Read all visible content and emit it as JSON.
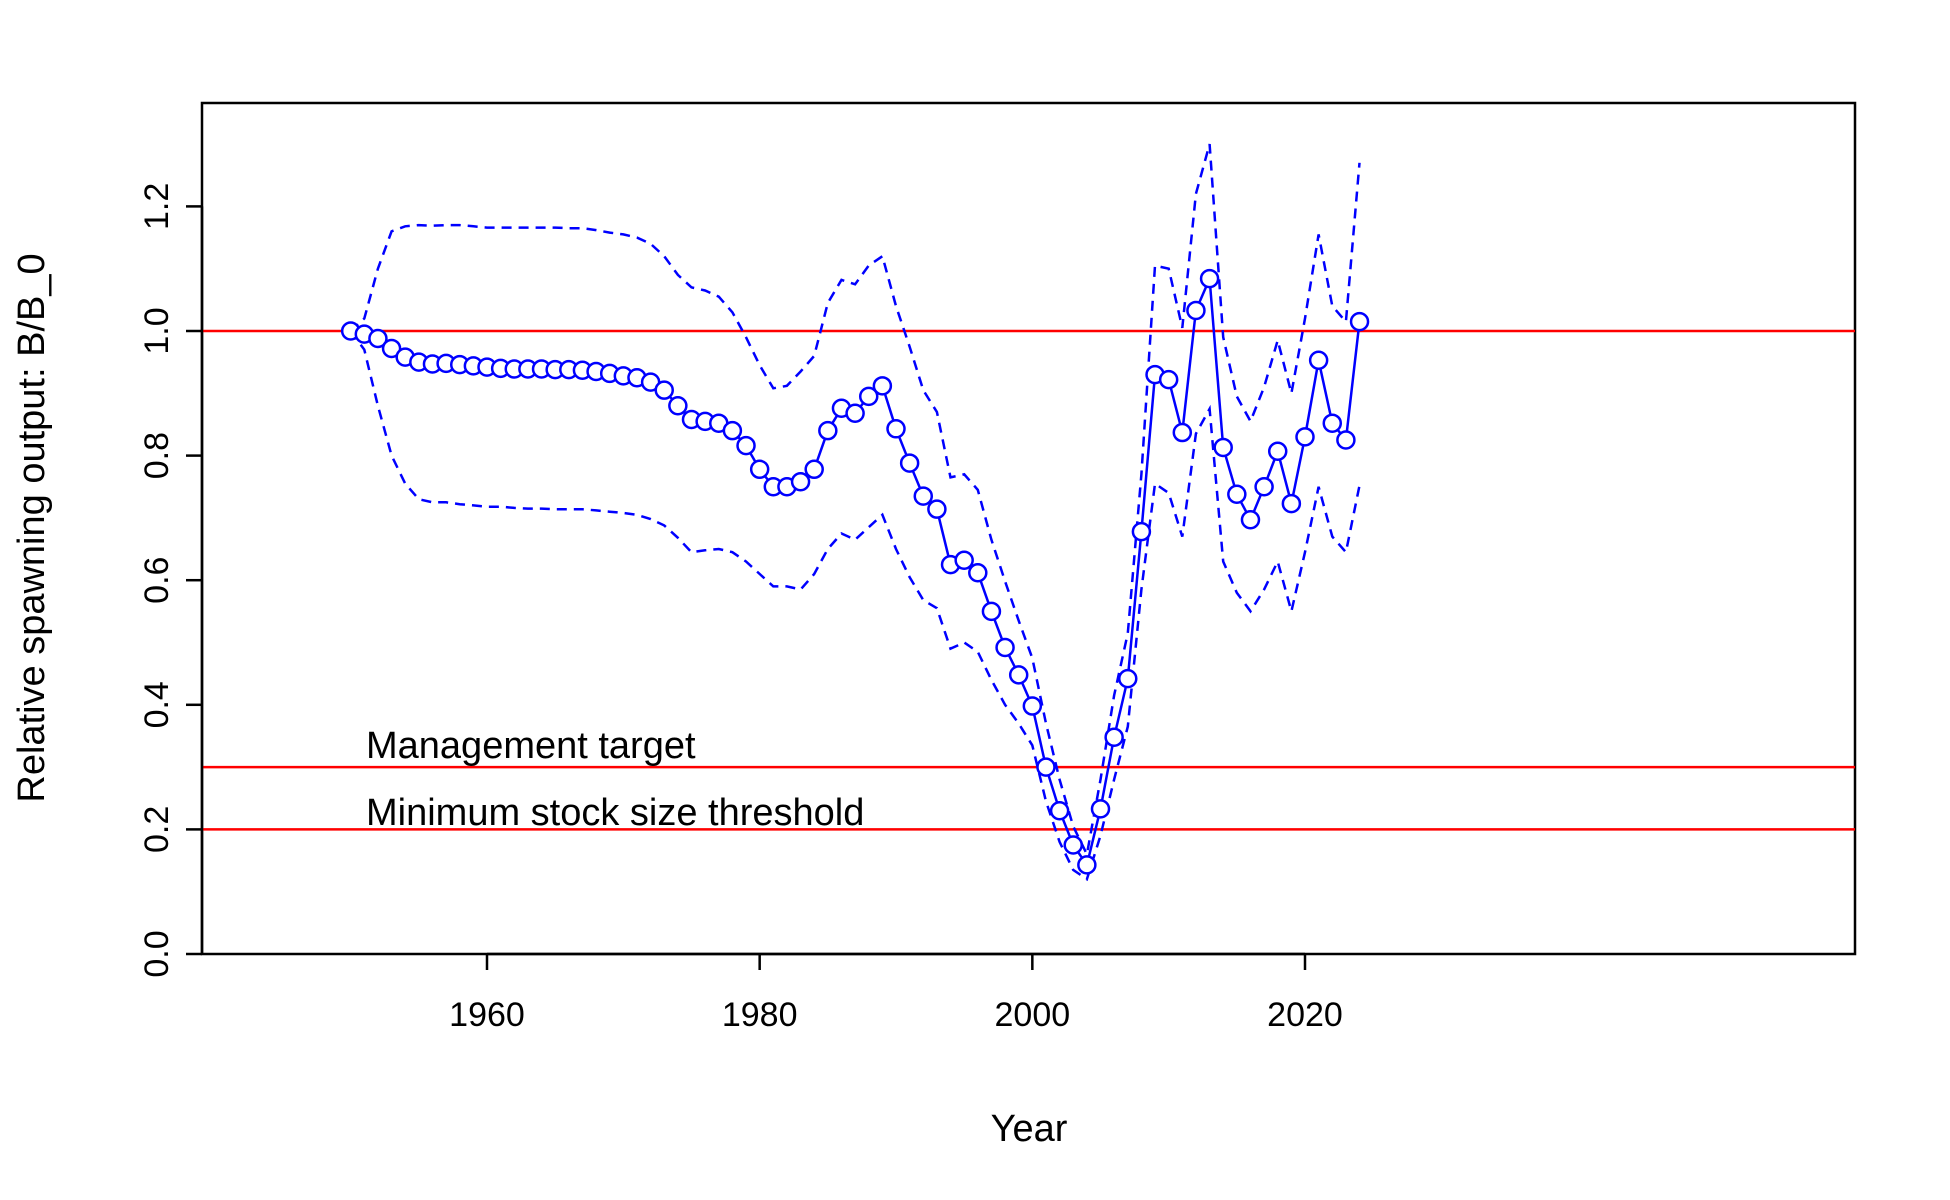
{
  "chart_data": {
    "type": "line",
    "xlabel": "Year",
    "ylabel": "Relative spawning output: B/B_0",
    "xlim": [
      1945.5,
      2027
    ],
    "ylim": [
      0,
      1.35
    ],
    "xticks": [
      1960,
      1980,
      2000,
      2020
    ],
    "yticks": [
      "0.0",
      "0.2",
      "0.4",
      "0.6",
      "0.8",
      "1.0",
      "1.2"
    ],
    "grid": false,
    "colors": {
      "series": "#0000ff",
      "reference": "#ff0000",
      "axis": "#000000"
    },
    "reference_lines": [
      {
        "y": 1.0,
        "label": ""
      },
      {
        "y": 0.3,
        "label": "Management target"
      },
      {
        "y": 0.2,
        "label": "Minimum stock size threshold"
      }
    ],
    "years": [
      1950,
      1951,
      1952,
      1953,
      1954,
      1955,
      1956,
      1957,
      1958,
      1959,
      1960,
      1961,
      1962,
      1963,
      1964,
      1965,
      1966,
      1967,
      1968,
      1969,
      1970,
      1971,
      1972,
      1973,
      1974,
      1975,
      1976,
      1977,
      1978,
      1979,
      1980,
      1981,
      1982,
      1983,
      1984,
      1985,
      1986,
      1987,
      1988,
      1989,
      1990,
      1991,
      1992,
      1993,
      1994,
      1995,
      1996,
      1997,
      1998,
      1999,
      2000,
      2001,
      2002,
      2003,
      2004,
      2005,
      2006,
      2007,
      2008,
      2009,
      2010,
      2011,
      2012,
      2013,
      2014,
      2015,
      2016,
      2017,
      2018,
      2019,
      2020,
      2021,
      2022,
      2023,
      2024
    ],
    "series": [
      {
        "role": "estimate",
        "values": [
          1.0,
          0.995,
          0.988,
          0.972,
          0.958,
          0.95,
          0.947,
          0.948,
          0.946,
          0.944,
          0.942,
          0.94,
          0.939,
          0.939,
          0.939,
          0.938,
          0.938,
          0.937,
          0.935,
          0.932,
          0.928,
          0.925,
          0.918,
          0.905,
          0.88,
          0.858,
          0.855,
          0.852,
          0.84,
          0.816,
          0.778,
          0.75,
          0.75,
          0.758,
          0.778,
          0.84,
          0.876,
          0.868,
          0.895,
          0.912,
          0.843,
          0.788,
          0.735,
          0.714,
          0.625,
          0.632,
          0.612,
          0.55,
          0.492,
          0.448,
          0.398,
          0.3,
          0.23,
          0.175,
          0.143,
          0.233,
          0.348,
          0.442,
          0.678,
          0.93,
          0.922,
          0.837,
          1.033,
          1.084,
          0.813,
          0.738,
          0.697,
          0.75,
          0.807,
          0.723,
          0.83,
          0.953,
          0.852,
          0.825,
          1.015
        ]
      },
      {
        "role": "upper",
        "values": [
          1.0,
          1.02,
          1.1,
          1.16,
          1.168,
          1.17,
          1.169,
          1.17,
          1.17,
          1.168,
          1.166,
          1.166,
          1.166,
          1.166,
          1.166,
          1.166,
          1.165,
          1.165,
          1.162,
          1.158,
          1.155,
          1.15,
          1.14,
          1.12,
          1.09,
          1.07,
          1.065,
          1.055,
          1.03,
          0.99,
          0.945,
          0.908,
          0.912,
          0.935,
          0.96,
          1.045,
          1.082,
          1.075,
          1.105,
          1.12,
          1.04,
          0.975,
          0.905,
          0.87,
          0.765,
          0.77,
          0.745,
          0.665,
          0.598,
          0.535,
          0.475,
          0.37,
          0.28,
          0.205,
          0.16,
          0.28,
          0.415,
          0.515,
          0.77,
          1.105,
          1.1,
          1.005,
          1.22,
          1.3,
          0.99,
          0.895,
          0.855,
          0.91,
          0.985,
          0.9,
          1.02,
          1.155,
          1.04,
          1.015,
          1.27
        ]
      },
      {
        "role": "lower",
        "values": [
          1.0,
          0.97,
          0.88,
          0.8,
          0.755,
          0.73,
          0.725,
          0.725,
          0.722,
          0.72,
          0.718,
          0.718,
          0.716,
          0.715,
          0.715,
          0.714,
          0.714,
          0.714,
          0.712,
          0.71,
          0.708,
          0.705,
          0.698,
          0.688,
          0.668,
          0.645,
          0.648,
          0.65,
          0.645,
          0.63,
          0.61,
          0.59,
          0.59,
          0.585,
          0.61,
          0.65,
          0.675,
          0.665,
          0.685,
          0.705,
          0.65,
          0.605,
          0.568,
          0.555,
          0.49,
          0.5,
          0.485,
          0.44,
          0.4,
          0.37,
          0.335,
          0.245,
          0.18,
          0.135,
          0.12,
          0.19,
          0.28,
          0.365,
          0.585,
          0.755,
          0.74,
          0.67,
          0.835,
          0.875,
          0.63,
          0.58,
          0.55,
          0.585,
          0.63,
          0.55,
          0.645,
          0.75,
          0.67,
          0.645,
          0.752
        ]
      }
    ]
  }
}
